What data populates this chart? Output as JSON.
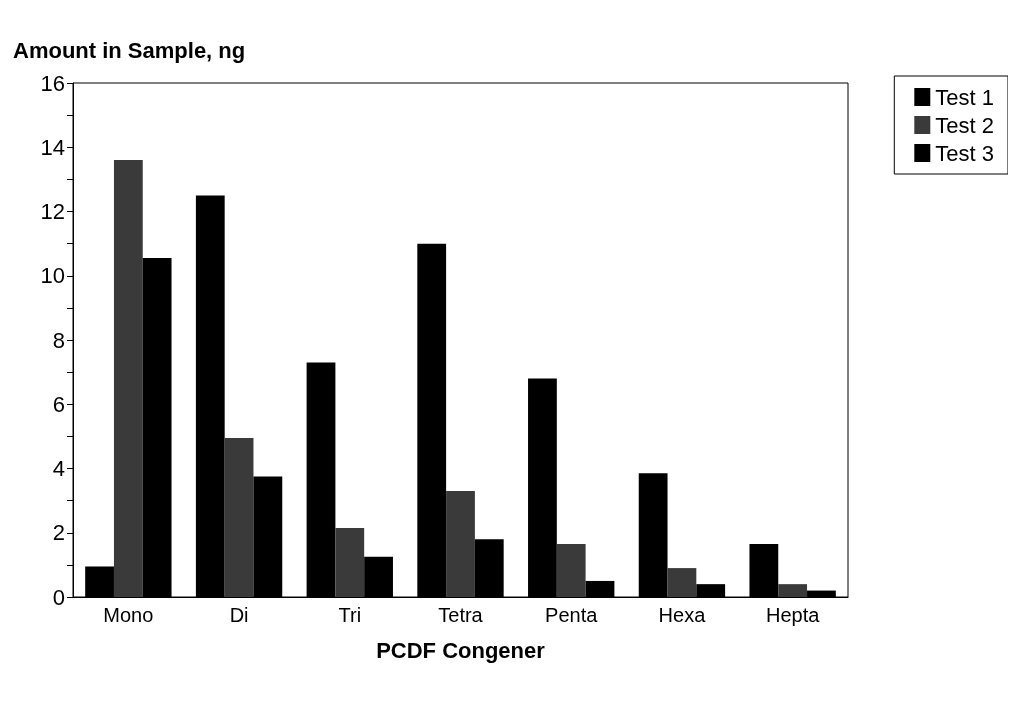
{
  "chart_data": {
    "type": "bar",
    "ylabel": "Amount in Sample, ng",
    "xlabel": "PCDF Congener",
    "categories": [
      "Mono",
      "Di",
      "Tri",
      "Tetra",
      "Penta",
      "Hexa",
      "Hepta"
    ],
    "series": [
      {
        "name": "Test 1",
        "color": "#000000",
        "values": [
          0.95,
          12.5,
          7.3,
          11.0,
          6.8,
          3.85,
          1.65
        ]
      },
      {
        "name": "Test 2",
        "color": "#3a3a3a",
        "values": [
          13.6,
          4.95,
          2.15,
          3.3,
          1.65,
          0.9,
          0.4
        ]
      },
      {
        "name": "Test 3",
        "color": "#000000",
        "values": [
          10.55,
          3.75,
          1.25,
          1.8,
          0.5,
          0.4,
          0.2
        ]
      }
    ],
    "ylim": [
      0,
      16
    ],
    "yticks": [
      0,
      {
        "value": 1,
        "label": null
      },
      2,
      {
        "value": 3,
        "label": null
      },
      4,
      {
        "value": 5,
        "label": null
      },
      6,
      {
        "value": 7,
        "label": null
      },
      8,
      {
        "value": 9,
        "label": null
      },
      10,
      {
        "value": 11,
        "label": null
      },
      12,
      {
        "value": 13,
        "label": null
      },
      14,
      {
        "value": 15,
        "label": null
      },
      16
    ],
    "grid": false,
    "legend": "top right"
  }
}
